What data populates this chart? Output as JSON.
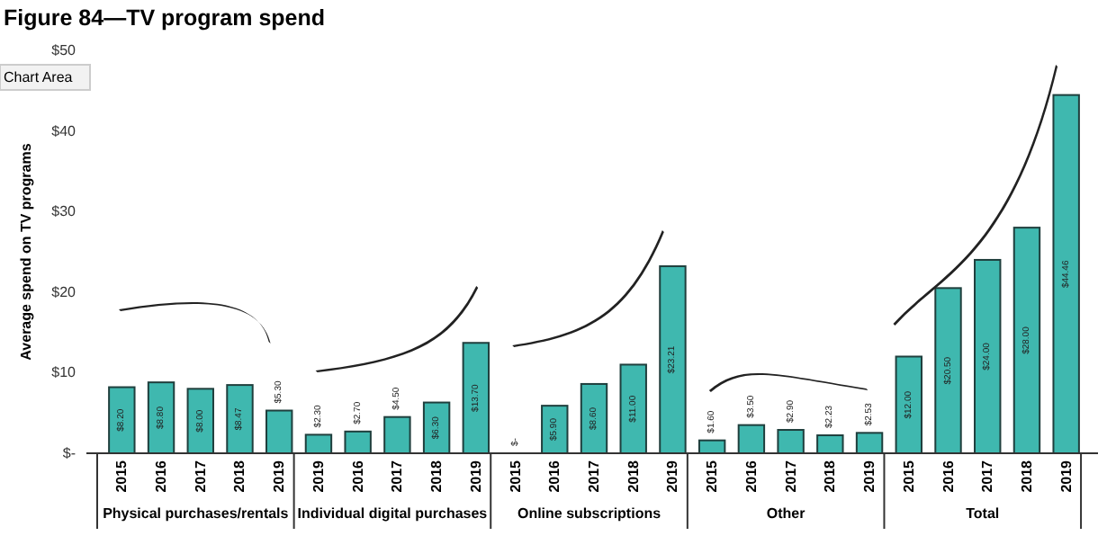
{
  "chart_data": {
    "type": "bar",
    "title": "Figure 84—TV program spend",
    "ylabel": "Average spend on TV programs",
    "categories": [
      "2015",
      "2016",
      "2017",
      "2018",
      "2019",
      "2019",
      "2016",
      "2017",
      "2018",
      "2019",
      "2015",
      "2016",
      "2017",
      "2018",
      "2019",
      "2015",
      "2016",
      "2017",
      "2018",
      "2019",
      "2015",
      "2016",
      "2017",
      "2018",
      "2019"
    ],
    "values": [
      8.2,
      8.8,
      8.0,
      8.47,
      5.3,
      2.3,
      2.7,
      4.5,
      6.3,
      13.7,
      0,
      5.9,
      8.6,
      11.0,
      23.21,
      1.6,
      3.5,
      2.9,
      2.23,
      2.53,
      12.0,
      20.5,
      24.0,
      28.0,
      44.46
    ],
    "value_labels": [
      "$8.20",
      "$8.80",
      "$8.00",
      "$8.47",
      "$5.30",
      "$2.30",
      "$2.70",
      "$4.50",
      "$6.30",
      "$13.70",
      "$-",
      "$5.90",
      "$8.60",
      "$11.00",
      "$23.21",
      "$1.60",
      "$3.50",
      "$2.90",
      "$2.23",
      "$2.53",
      "$12.00",
      "$20.50",
      "$24.00",
      "$28.00",
      "$44.46"
    ],
    "color": "#3fb8af",
    "ylim": [
      0,
      50
    ],
    "yticks": [
      {
        "value": 0,
        "label": "$-"
      },
      {
        "value": 10,
        "label": "$10"
      },
      {
        "value": 20,
        "label": "$20"
      },
      {
        "value": 30,
        "label": "$30"
      },
      {
        "value": 40,
        "label": "$40"
      },
      {
        "value": 50,
        "label": "$50"
      }
    ],
    "annotations": [
      "Chart Area",
      "Physical purchases/rentals",
      "Individual digital purchases",
      "Online subscriptions",
      "Other",
      "Total"
    ],
    "grid": false
  }
}
